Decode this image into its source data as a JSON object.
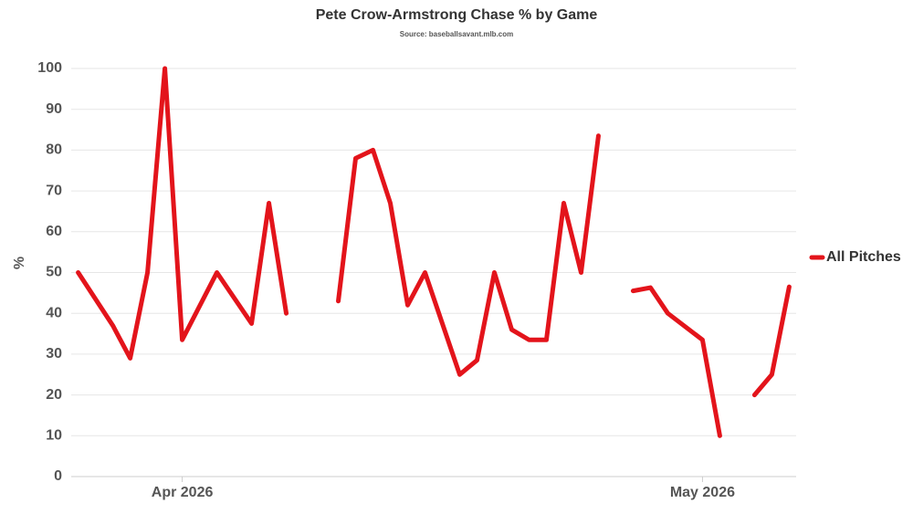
{
  "chart_data": {
    "type": "line",
    "title": "Pete Crow-Armstrong Chase % by Game",
    "subtitle": "Source: baseballsavant.mlb.com",
    "y_label": "%",
    "x": [
      -6,
      -4,
      -3,
      -2,
      -1,
      0,
      2,
      4,
      5,
      6,
      7,
      9,
      10,
      11,
      12,
      13,
      14,
      16,
      17,
      18,
      19,
      20,
      21,
      22,
      23,
      24,
      25,
      26,
      27,
      28,
      30,
      31,
      32,
      33,
      34,
      35
    ],
    "series": [
      {
        "name": "All Pitches",
        "color": "#e3141b",
        "values": [
          50,
          37,
          29,
          50,
          100,
          33.5,
          50,
          37.5,
          67,
          40,
          null,
          43,
          78,
          80,
          67,
          42,
          50,
          25,
          28.5,
          50,
          36,
          33.5,
          33.5,
          67,
          50,
          83.5,
          null,
          45.5,
          46.3,
          40,
          33.5,
          10,
          null,
          20,
          25,
          46.5
        ]
      }
    ],
    "xlim": [
      -6.4,
      35.4
    ],
    "xticks": [
      {
        "value": 0,
        "label": "Apr 2026"
      },
      {
        "value": 30,
        "label": "May 2026"
      }
    ],
    "ylim": [
      0,
      100
    ],
    "yticks": [
      0,
      10,
      20,
      30,
      40,
      50,
      60,
      70,
      80,
      90,
      100
    ],
    "grid": true,
    "legend": "right"
  }
}
